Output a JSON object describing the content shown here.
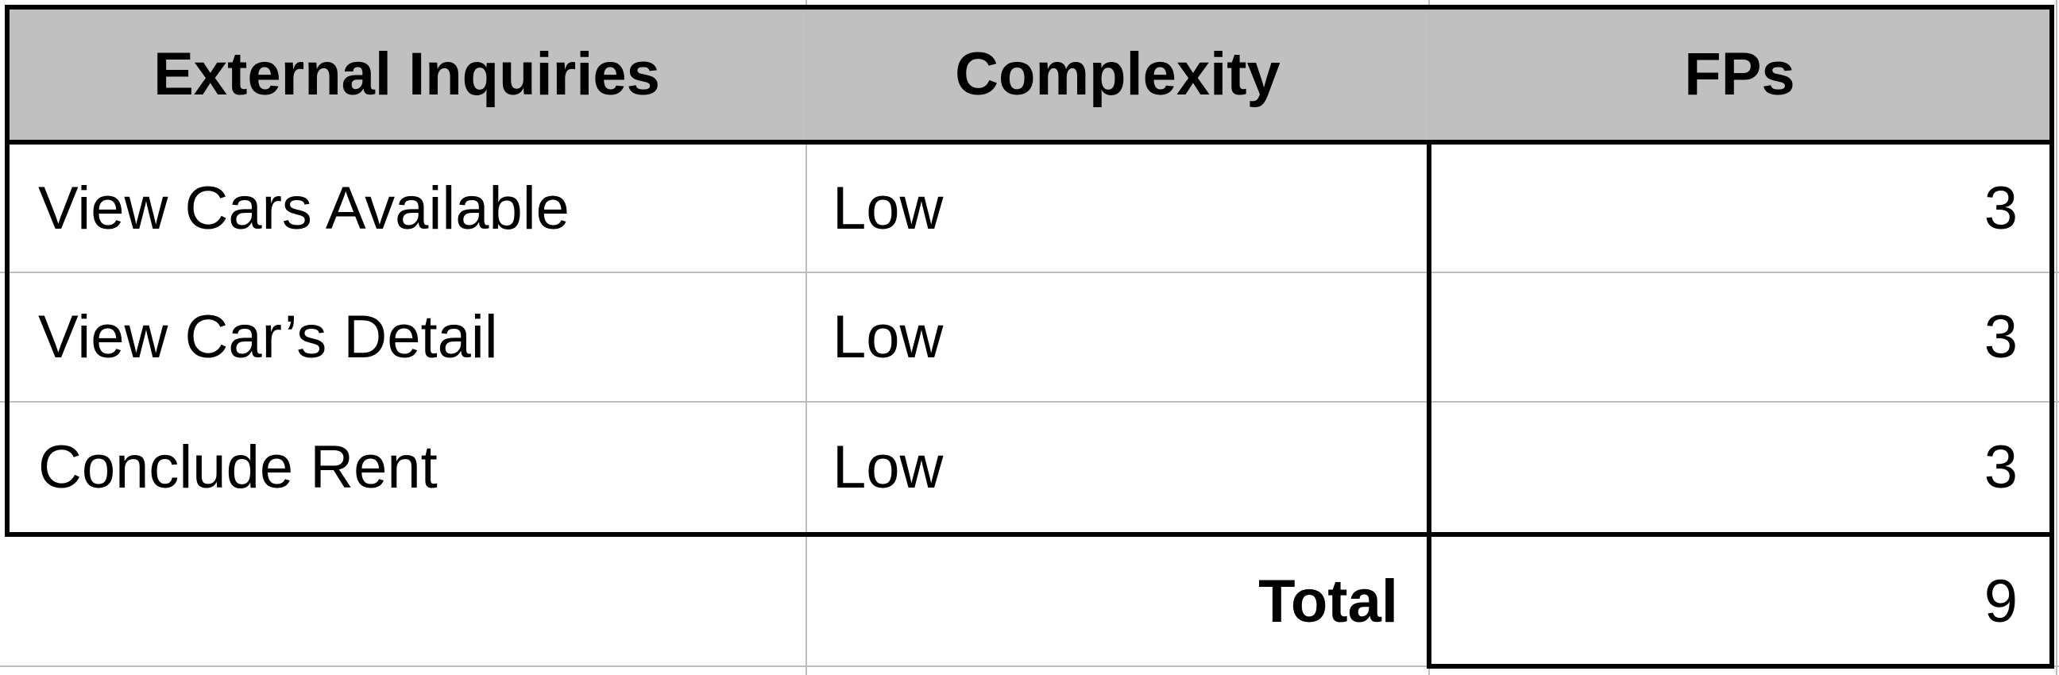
{
  "table": {
    "headers": {
      "col1": "External Inquiries",
      "col2": "Complexity",
      "col3": "FPs"
    },
    "rows": [
      {
        "inquiry": "View Cars Available",
        "complexity": "Low",
        "fps": "3"
      },
      {
        "inquiry": "View Car’s Detail",
        "complexity": "Low",
        "fps": "3"
      },
      {
        "inquiry": "Conclude Rent",
        "complexity": "Low",
        "fps": "3"
      }
    ],
    "total": {
      "label": "Total",
      "value": "9"
    }
  },
  "colors": {
    "header_bg": "#c0c0c0",
    "gridline": "#bdbdbd",
    "border": "#000000"
  }
}
